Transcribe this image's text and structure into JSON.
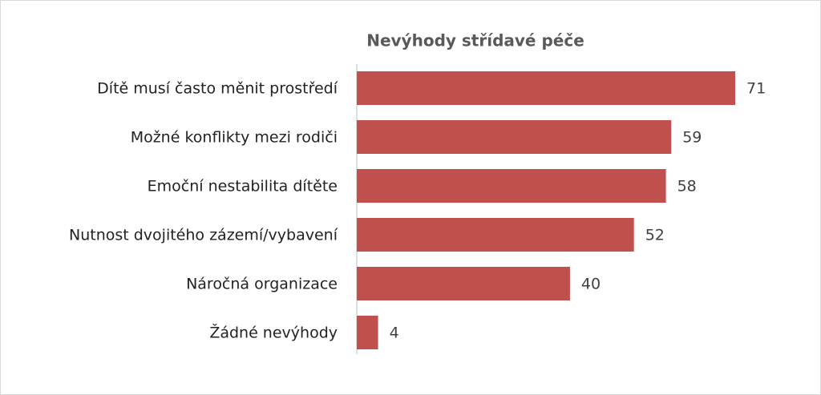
{
  "chart_data": {
    "type": "bar",
    "orientation": "horizontal",
    "title": "Nevýhody střídavé péče",
    "categories": [
      "Dítě musí často měnit prostředí",
      "Možné konflikty mezi rodiči",
      "Emoční nestabilita dítěte",
      "Nutnost dvojitého zázemí/vybavení",
      "Náročná organizace",
      "Žádné nevýhody"
    ],
    "values": [
      71,
      59,
      58,
      52,
      40,
      4
    ],
    "color": "#c0504d"
  }
}
